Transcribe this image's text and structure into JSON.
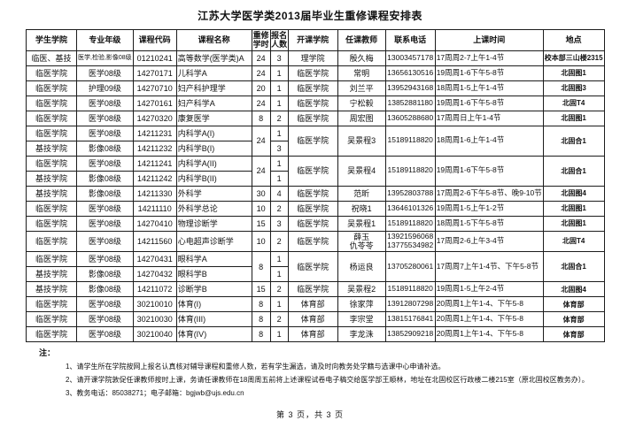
{
  "title": "江苏大学医学类2013届毕业生重修课程安排表",
  "colors": {
    "background": "#ffffff",
    "border": "#1c1c1c",
    "text": "#111111"
  },
  "table": {
    "col_keys": [
      "student-college",
      "major-grade",
      "course-code",
      "course-name",
      "retake-hours",
      "enrollment-count",
      "offering-college",
      "teacher",
      "phone",
      "class-time",
      "location"
    ],
    "headers": [
      "学生学院",
      "专业年级",
      "课程代码",
      "课程名称",
      "重修\n学时",
      "报名\n人数",
      "开课学院",
      "任课教师",
      "联系电话",
      "上课时间",
      "地点"
    ],
    "rows": [
      [
        "临医、基技",
        {
          "t": "医学,检验,影像08级",
          "small": true
        },
        "01210241",
        "高等数学(医学类)A",
        "24",
        "3",
        "理学院",
        "殷久梅",
        "13003457178",
        "17周周2-7上午1-4节",
        "校本部三山楼2315"
      ],
      [
        "临医学院",
        "医学08级",
        "14270171",
        "儿科学A",
        "24",
        "1",
        "临医学院",
        "常明",
        "13656130516",
        "19周周1-6下午5-8节",
        "北固图1"
      ],
      [
        "临医学院",
        "护理09级",
        "14270710",
        "妇产科护理学",
        "20",
        "1",
        "临医学院",
        "刘兰平",
        "13952943168",
        "18周周1-5上午1-4节",
        "北固图3"
      ],
      [
        "临医学院",
        "医学08级",
        "14270161",
        "妇产科学A",
        "24",
        "1",
        "临医学院",
        "宁松毅",
        "13852881180",
        "19周周1-6下午5-8节",
        "北固T4"
      ],
      [
        "临医学院",
        "医学08级",
        "14270320",
        "康复医学",
        "8",
        "2",
        "临医学院",
        "周宏图",
        "13605288680",
        "17周周日上午1-4节",
        "北固图1"
      ],
      [
        "临医学院",
        "医学08级",
        "14211231",
        "内科学A(I)",
        {
          "t": "24",
          "rs": 2
        },
        "1",
        {
          "t": "临医学院",
          "rs": 2
        },
        {
          "t": "吴景程3",
          "rs": 2
        },
        {
          "t": "15189118820",
          "rs": 2
        },
        {
          "t": "18周周1-6上午1-4节",
          "rs": 2
        },
        {
          "t": "北固合1",
          "rs": 2
        }
      ],
      [
        "基技学院",
        "影像08级",
        "14211232",
        "内科学B(I)",
        null,
        "3",
        null,
        null,
        null,
        null,
        null
      ],
      [
        "临医学院",
        "医学08级",
        "14211241",
        "内科学A(II)",
        {
          "t": "24",
          "rs": 2
        },
        "1",
        {
          "t": "临医学院",
          "rs": 2
        },
        {
          "t": "吴景程4",
          "rs": 2
        },
        {
          "t": "15189118820",
          "rs": 2
        },
        {
          "t": "19周周1-6下午5-8节",
          "rs": 2
        },
        {
          "t": "北固合1",
          "rs": 2
        }
      ],
      [
        "基技学院",
        "影像08级",
        "14211242",
        "内科学B(II)",
        null,
        "1",
        null,
        null,
        null,
        null,
        null
      ],
      [
        "基技学院",
        "影像08级",
        "14211330",
        "外科学",
        "30",
        "4",
        "临医学院",
        "范昕",
        "13952803788",
        "17周周2-6下午5-8节、晚9-10节",
        "北固图4"
      ],
      [
        "临医学院",
        "医学08级",
        "14211110",
        "外科学总论",
        "10",
        "2",
        "临医学院",
        "祝晓1",
        "13646101326",
        "19周周1-5上午1-2节",
        "北固图1"
      ],
      [
        "临医学院",
        "医学08级",
        "14270410",
        "物理诊断学",
        "15",
        "3",
        "临医学院",
        "吴景程1",
        "15189118820",
        "18周周1-5下午5-8节",
        "北固图1"
      ],
      [
        "临医学院",
        "医学08级",
        "14211560",
        "心电超声诊断学",
        "10",
        "2",
        "临医学院",
        "薛玉\n仇苓苓",
        "13921596068\n13775534982",
        "17周周2-6上午3-4节",
        "北固T4"
      ],
      [
        "临医学院",
        "医学08级",
        "14270431",
        "眼科学A",
        {
          "t": "8",
          "rs": 2
        },
        "1",
        {
          "t": "临医学院",
          "rs": 2
        },
        {
          "t": "杨运良",
          "rs": 2
        },
        {
          "t": "13705280061",
          "rs": 2
        },
        {
          "t": "17周周7上午1-4节、下午5-8节",
          "rs": 2
        },
        {
          "t": "北固合1",
          "rs": 2
        }
      ],
      [
        "基技学院",
        "影像08级",
        "14270432",
        "眼科学B",
        null,
        "1",
        null,
        null,
        null,
        null,
        null
      ],
      [
        "基技学院",
        "影像08级",
        "14211072",
        "诊断学B",
        "15",
        "2",
        "临医学院",
        "吴景程2",
        "15189118820",
        "19周周1-5上午2-4节",
        "北固图4"
      ],
      [
        "临医学院",
        "医学08级",
        "30210010",
        "体育(I)",
        "8",
        "1",
        "体育部",
        "徐家萍",
        "13912807298",
        "20周周1上午1-4、下午5-8",
        "体育部"
      ],
      [
        "临医学院",
        "医学08级",
        "30210030",
        "体育(III)",
        "8",
        "2",
        "体育部",
        "李宗堂",
        "13815176841",
        "20周周1上午1-4、下午5-8",
        "体育部"
      ],
      [
        "临医学院",
        "医学08级",
        "30210040",
        "体育(IV)",
        "8",
        "1",
        "体育部",
        "李龙洙",
        "13852909218",
        "20周周1上午1-4、下午5-8",
        "体育部"
      ]
    ]
  },
  "notes": {
    "label": "注：",
    "items": [
      "1、请学生所在学院按网上报名认真核对辅导课程和重修人数，若有学生漏选，请及时向教务处学籍与选课中心申请补选。",
      "2、请开课学院敦促任课教师按时上课，务请任课教师在18周周五前将上述课程试卷电子稿交给医学部王顺林，地址在北固校区行政楼二楼215室（原北固校区教务办）。",
      "3、教务电话：85038271；电子邮箱：bgjwb@ujs.edu.cn"
    ]
  },
  "footer": {
    "page_indicator": "第 3 页，共 3 页"
  }
}
